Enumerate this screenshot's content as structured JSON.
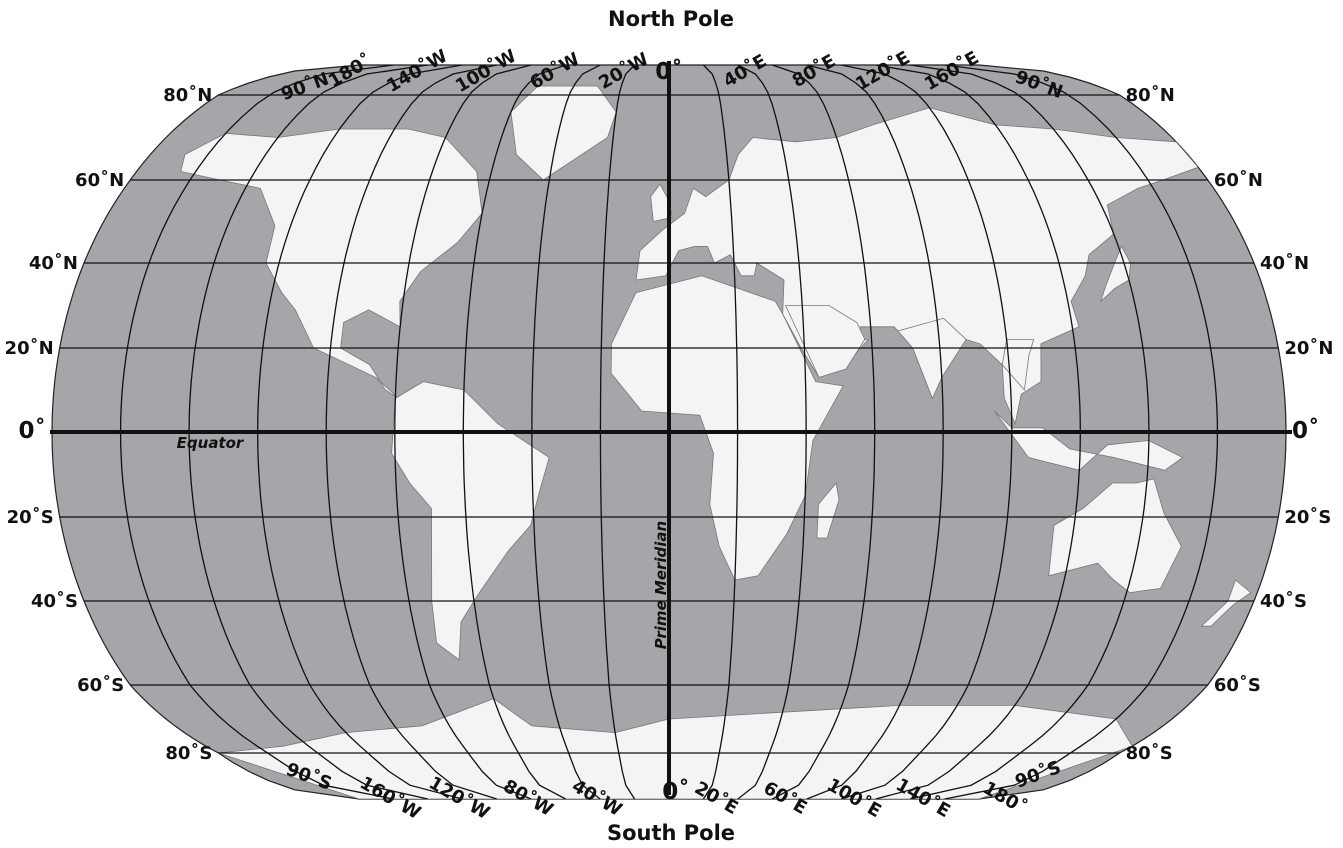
{
  "poles": {
    "north": "North Pole",
    "south": "South Pole"
  },
  "lines": {
    "equator": "Equator",
    "prime_meridian": "Prime Meridian"
  },
  "colors": {
    "ocean": "#a6a6aa",
    "land": "#f4f4f4",
    "grid": "#111111"
  },
  "latitude_labels_left": [
    {
      "lat": 80,
      "text": "80˚N"
    },
    {
      "lat": 60,
      "text": "60˚N"
    },
    {
      "lat": 40,
      "text": "40˚N"
    },
    {
      "lat": 20,
      "text": "20˚N"
    },
    {
      "lat": 0,
      "text": "0˚"
    },
    {
      "lat": -20,
      "text": "20˚S"
    },
    {
      "lat": -40,
      "text": "40˚S"
    },
    {
      "lat": -60,
      "text": "60˚S"
    },
    {
      "lat": -80,
      "text": "80˚S"
    }
  ],
  "latitude_labels_right": [
    {
      "lat": 80,
      "text": "80˚N"
    },
    {
      "lat": 60,
      "text": "60˚N"
    },
    {
      "lat": 40,
      "text": "40˚N"
    },
    {
      "lat": 20,
      "text": "20˚N"
    },
    {
      "lat": 0,
      "text": "0˚"
    },
    {
      "lat": -20,
      "text": "20˚S"
    },
    {
      "lat": -40,
      "text": "40˚S"
    },
    {
      "lat": -60,
      "text": "60˚S"
    },
    {
      "lat": -80,
      "text": "80˚S"
    }
  ],
  "pole_labels": {
    "top_left": "90˚N",
    "top_right": "90˚N",
    "bottom_left": "90˚S",
    "bottom_right": "90˚S"
  },
  "top_longitudes": [
    {
      "lon": 180,
      "text": "180˚"
    },
    {
      "lon": -140,
      "text": "140˚W"
    },
    {
      "lon": -100,
      "text": "100˚W"
    },
    {
      "lon": -60,
      "text": "60˚W"
    },
    {
      "lon": -20,
      "text": "20˚W"
    },
    {
      "lon": 0,
      "text": "0˚"
    },
    {
      "lon": 40,
      "text": "40˚E"
    },
    {
      "lon": 80,
      "text": "80˚E"
    },
    {
      "lon": 120,
      "text": "120˚E"
    },
    {
      "lon": 160,
      "text": "160˚E"
    }
  ],
  "bottom_longitudes": [
    {
      "lon": -160,
      "text": "160˚W"
    },
    {
      "lon": -120,
      "text": "120˚W"
    },
    {
      "lon": -80,
      "text": "80˚W"
    },
    {
      "lon": -40,
      "text": "40˚W"
    },
    {
      "lon": 0,
      "text": "0˚"
    },
    {
      "lon": 20,
      "text": "20˚E"
    },
    {
      "lon": 60,
      "text": "60˚E"
    },
    {
      "lon": 100,
      "text": "100˚E"
    },
    {
      "lon": 140,
      "text": "140˚E"
    },
    {
      "lon": 180,
      "text": "180˚"
    }
  ]
}
